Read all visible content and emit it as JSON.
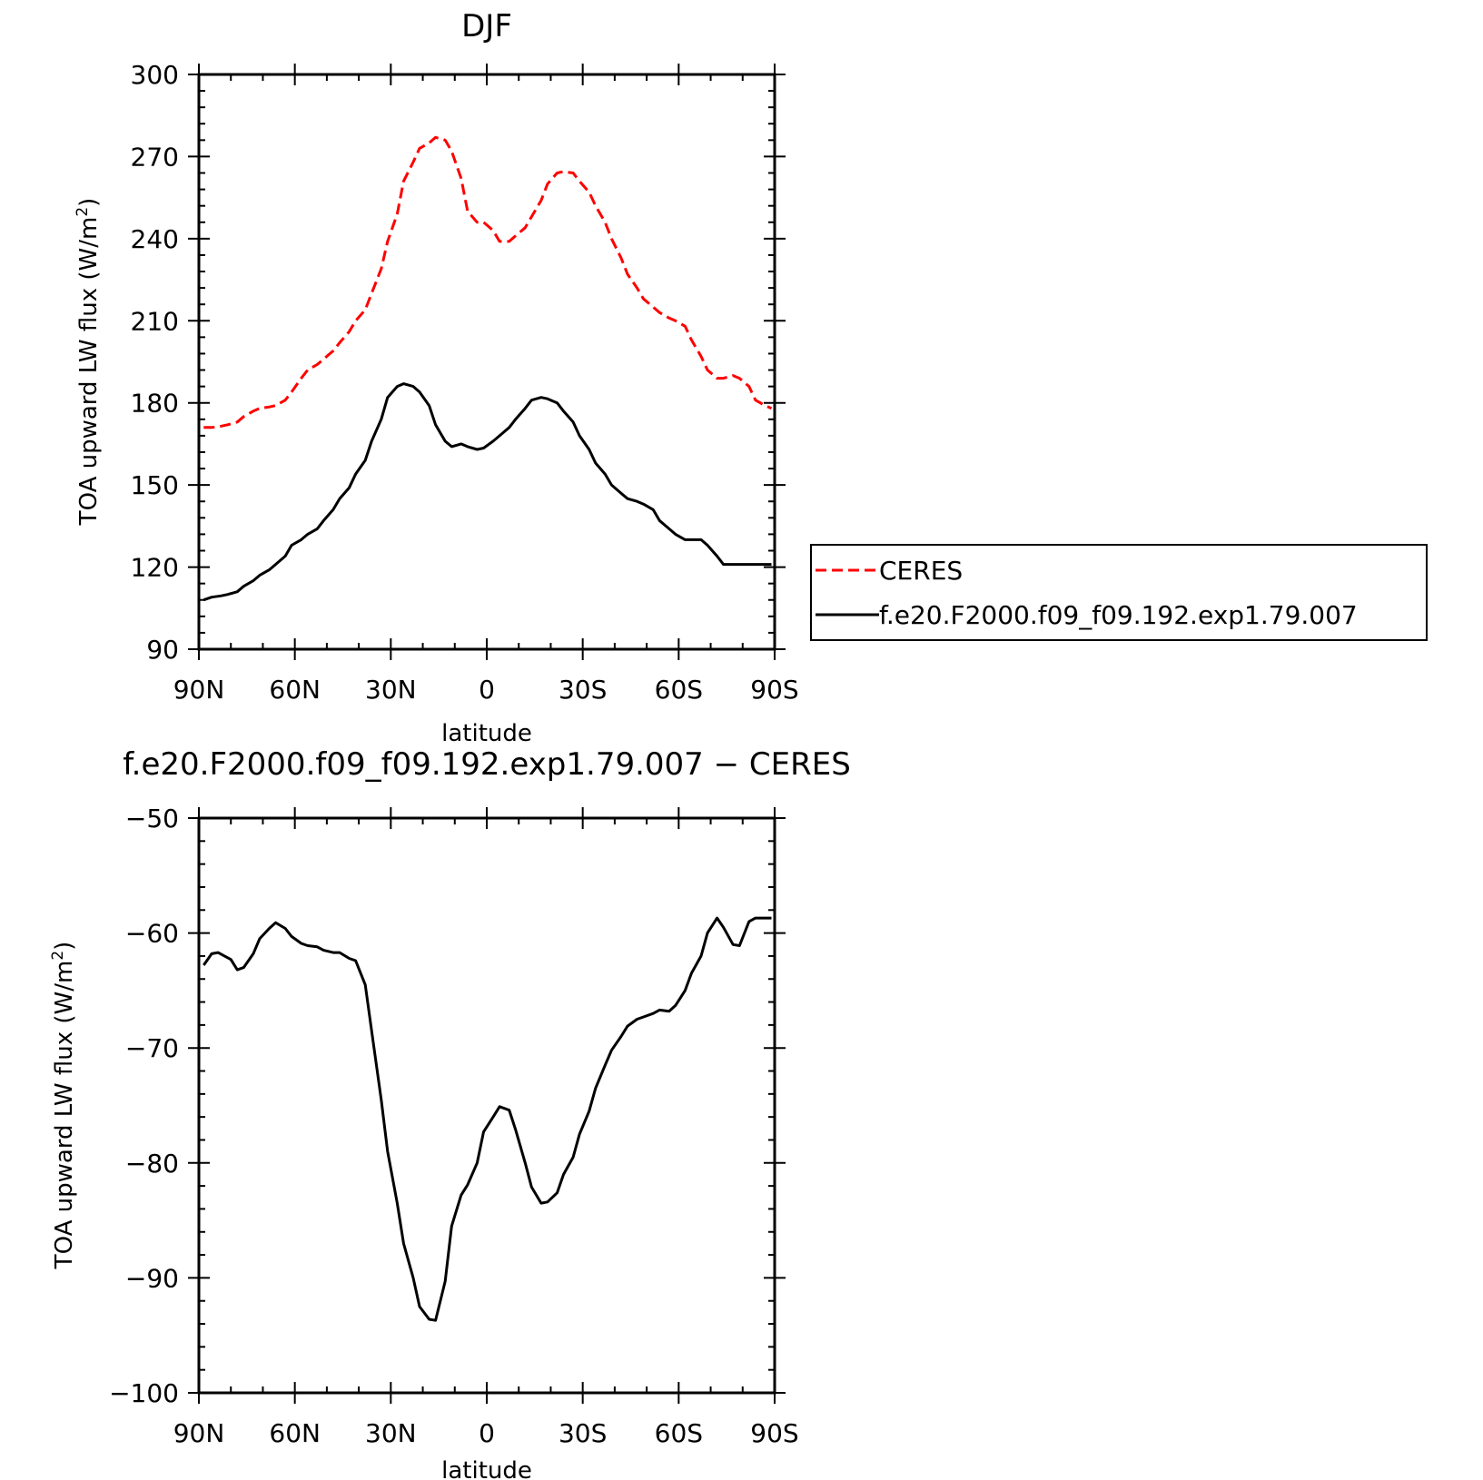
{
  "chart_data": [
    {
      "type": "line",
      "title": "DJF",
      "xlabel": "latitude",
      "ylabel": "TOA upward LW flux (W/m²)",
      "ylabel_parts": [
        "TOA upward LW flux (W/m",
        "2",
        ")"
      ],
      "xlim": [
        -90,
        90
      ],
      "ylim": [
        90,
        300
      ],
      "yticks": [
        90,
        120,
        150,
        180,
        210,
        240,
        270,
        300
      ],
      "xticks": [
        -90,
        -60,
        -30,
        0,
        30,
        60,
        90
      ],
      "xtick_labels": [
        "90N",
        "60N",
        "30N",
        "0",
        "30S",
        "60S",
        "90S"
      ],
      "grid": false,
      "legend_position": "right",
      "legend": [
        "CERES",
        "f.e20.F2000.f09_f09.192.exp1.79.007"
      ],
      "x": [
        -88.5,
        -86,
        -83,
        -81,
        -78,
        -76,
        -73,
        -71,
        -68,
        -66,
        -63,
        -61,
        -58,
        -56,
        -53,
        -51,
        -48,
        -46,
        -43,
        -41,
        -38,
        -36,
        -33,
        -31,
        -28,
        -26,
        -23,
        -21,
        -18,
        -16,
        -13,
        -11,
        -8,
        -6,
        -3,
        -1,
        2,
        4,
        7,
        9,
        12,
        14,
        17,
        19,
        22,
        24,
        27,
        29,
        32,
        34,
        37,
        39,
        42,
        44,
        47,
        49,
        52,
        54,
        57,
        59,
        62,
        64,
        67,
        69,
        72,
        74,
        77,
        79,
        82,
        84,
        87,
        89
      ],
      "series": [
        {
          "name": "CERES",
          "color": "#ff0000",
          "style": "dashed",
          "values": [
            171,
            171,
            171.5,
            172,
            173,
            175,
            177,
            178,
            178.5,
            179,
            181,
            184,
            189,
            192,
            194,
            196,
            199,
            202,
            206,
            210,
            214,
            220,
            229,
            239,
            249,
            261,
            268,
            273,
            275,
            277,
            276,
            272,
            262,
            250,
            246,
            246,
            243,
            239,
            239,
            241,
            244,
            248,
            254,
            260,
            264,
            264.5,
            264,
            261,
            257,
            252,
            246,
            240,
            233,
            227,
            222,
            218,
            215,
            213,
            211,
            210,
            208,
            203,
            197,
            192,
            189,
            189,
            190,
            189,
            186,
            181,
            179,
            178
          ]
        },
        {
          "name": "f.e20.F2000.f09_f09.192.exp1.79.007",
          "color": "#000000",
          "style": "solid",
          "values": [
            108,
            109,
            109.5,
            110,
            111,
            113,
            115,
            117,
            119,
            121,
            124,
            128,
            130,
            132,
            134,
            137,
            141,
            145,
            149,
            154,
            159,
            166,
            174,
            182,
            186,
            187,
            186,
            184,
            179,
            172,
            166,
            164,
            165,
            164,
            163,
            163.5,
            166,
            168,
            171,
            174,
            178,
            181,
            182,
            181.5,
            180,
            177,
            173,
            168,
            163,
            158,
            154,
            150,
            147,
            145,
            144,
            143,
            141,
            137,
            134,
            132,
            130,
            130,
            130,
            128,
            124,
            121,
            121,
            121,
            121,
            121,
            121,
            121
          ]
        }
      ]
    },
    {
      "type": "line",
      "title": "f.e20.F2000.f09_f09.192.exp1.79.007 − CERES",
      "xlabel": "latitude",
      "ylabel": "TOA upward LW flux (W/m²)",
      "ylabel_parts": [
        "TOA upward LW flux (W/m",
        "2",
        ")"
      ],
      "xlim": [
        -90,
        90
      ],
      "ylim": [
        -100,
        -50
      ],
      "yticks": [
        -100,
        -90,
        -80,
        -70,
        -60,
        -50
      ],
      "ytick_labels": [
        "−100",
        "−90",
        "−80",
        "−70",
        "−60",
        "−50"
      ],
      "xticks": [
        -90,
        -60,
        -30,
        0,
        30,
        60,
        90
      ],
      "xtick_labels": [
        "90N",
        "60N",
        "30N",
        "0",
        "30S",
        "60S",
        "90S"
      ],
      "grid": false,
      "x": [
        -88.5,
        -86,
        -84,
        -82,
        -80,
        -78,
        -76,
        -73,
        -71,
        -68,
        -66,
        -63,
        -61,
        -58,
        -56,
        -53,
        -51,
        -48,
        -46,
        -43,
        -41,
        -38,
        -36,
        -33,
        -31,
        -28,
        -26,
        -23,
        -21,
        -18,
        -16,
        -13,
        -11,
        -8,
        -6,
        -3,
        -1,
        2,
        4,
        7,
        9,
        12,
        14,
        17,
        19,
        22,
        24,
        27,
        29,
        32,
        34,
        37,
        39,
        42,
        44,
        47,
        49,
        52,
        54,
        57,
        59,
        62,
        64,
        67,
        69,
        72,
        74,
        77,
        79,
        82,
        84,
        87,
        89
      ],
      "series": [
        {
          "name": "",
          "color": "#000000",
          "style": "solid",
          "values": [
            -62.8,
            -61.8,
            -61.7,
            -62,
            -62.3,
            -63.2,
            -63,
            -61.8,
            -60.5,
            -59.6,
            -59.1,
            -59.6,
            -60.3,
            -60.9,
            -61.1,
            -61.2,
            -61.5,
            -61.7,
            -61.7,
            -62.2,
            -62.4,
            -64.5,
            -68.5,
            -74.5,
            -79,
            -83.5,
            -87,
            -90,
            -92.5,
            -93.6,
            -93.7,
            -90.3,
            -85.5,
            -82.8,
            -81.9,
            -80,
            -77.3,
            -76,
            -75.1,
            -75.4,
            -77.1,
            -80,
            -82.1,
            -83.5,
            -83.4,
            -82.6,
            -81,
            -79.5,
            -77.5,
            -75.5,
            -73.5,
            -71.5,
            -70.2,
            -69,
            -68.1,
            -67.5,
            -67.3,
            -67,
            -66.7,
            -66.8,
            -66.3,
            -65,
            -63.5,
            -62,
            -60,
            -58.7,
            -59.5,
            -61,
            -61.1,
            -59,
            -58.7,
            -58.7,
            -58.7
          ]
        }
      ]
    }
  ]
}
